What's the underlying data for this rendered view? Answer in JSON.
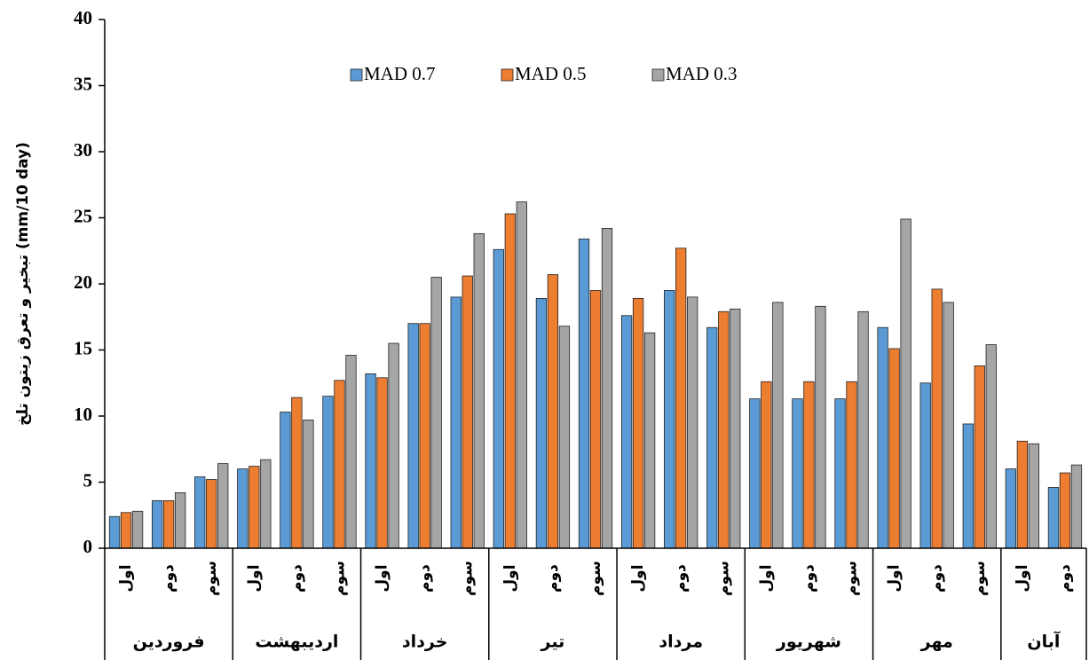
{
  "chart_data": {
    "type": "bar",
    "y_label": "تبخیر و تعرق زیتون تلخ (mm/10 day)",
    "category_groups": [
      {
        "name": "فروردین",
        "categories": [
          "اول",
          "دوم",
          "سوم"
        ]
      },
      {
        "name": "اردیبهشت",
        "categories": [
          "اول",
          "دوم",
          "سوم"
        ]
      },
      {
        "name": "خرداد",
        "categories": [
          "اول",
          "دوم",
          "سوم"
        ]
      },
      {
        "name": "تیر",
        "categories": [
          "اول",
          "دوم",
          "سوم"
        ]
      },
      {
        "name": "مرداد",
        "categories": [
          "اول",
          "دوم",
          "سوم"
        ]
      },
      {
        "name": "شهریور",
        "categories": [
          "اول",
          "دوم",
          "سوم"
        ]
      },
      {
        "name": "مهر",
        "categories": [
          "اول",
          "دوم",
          "سوم"
        ]
      },
      {
        "name": "آبان",
        "categories": [
          "اول",
          "دوم"
        ]
      }
    ],
    "series": [
      {
        "name": "MAD 0.7",
        "color": "#5b9bd5",
        "values": [
          2.4,
          3.6,
          5.4,
          6.0,
          10.3,
          11.5,
          13.2,
          17.0,
          19.0,
          22.6,
          18.9,
          23.4,
          17.6,
          19.5,
          16.7,
          11.3,
          11.3,
          11.3,
          16.7,
          12.5,
          9.4,
          6.0,
          4.6
        ]
      },
      {
        "name": "MAD 0.5",
        "color": "#ed7d31",
        "values": [
          2.7,
          3.6,
          5.2,
          6.2,
          11.4,
          12.7,
          12.9,
          17.0,
          20.6,
          25.3,
          20.7,
          19.5,
          18.9,
          22.7,
          17.9,
          12.6,
          12.6,
          12.6,
          15.1,
          19.6,
          13.8,
          8.1,
          5.7
        ]
      },
      {
        "name": "MAD 0.3",
        "color": "#a5a5a5",
        "values": [
          2.8,
          4.2,
          6.4,
          6.7,
          9.7,
          14.6,
          15.5,
          20.5,
          23.8,
          26.2,
          16.8,
          24.2,
          16.3,
          19.0,
          18.1,
          18.6,
          18.3,
          17.9,
          24.9,
          18.6,
          15.4,
          7.9,
          6.3
        ]
      }
    ],
    "ylim": [
      0,
      40
    ],
    "yticks": [
      0,
      5,
      10,
      15,
      20,
      25,
      30,
      35,
      40
    ]
  }
}
